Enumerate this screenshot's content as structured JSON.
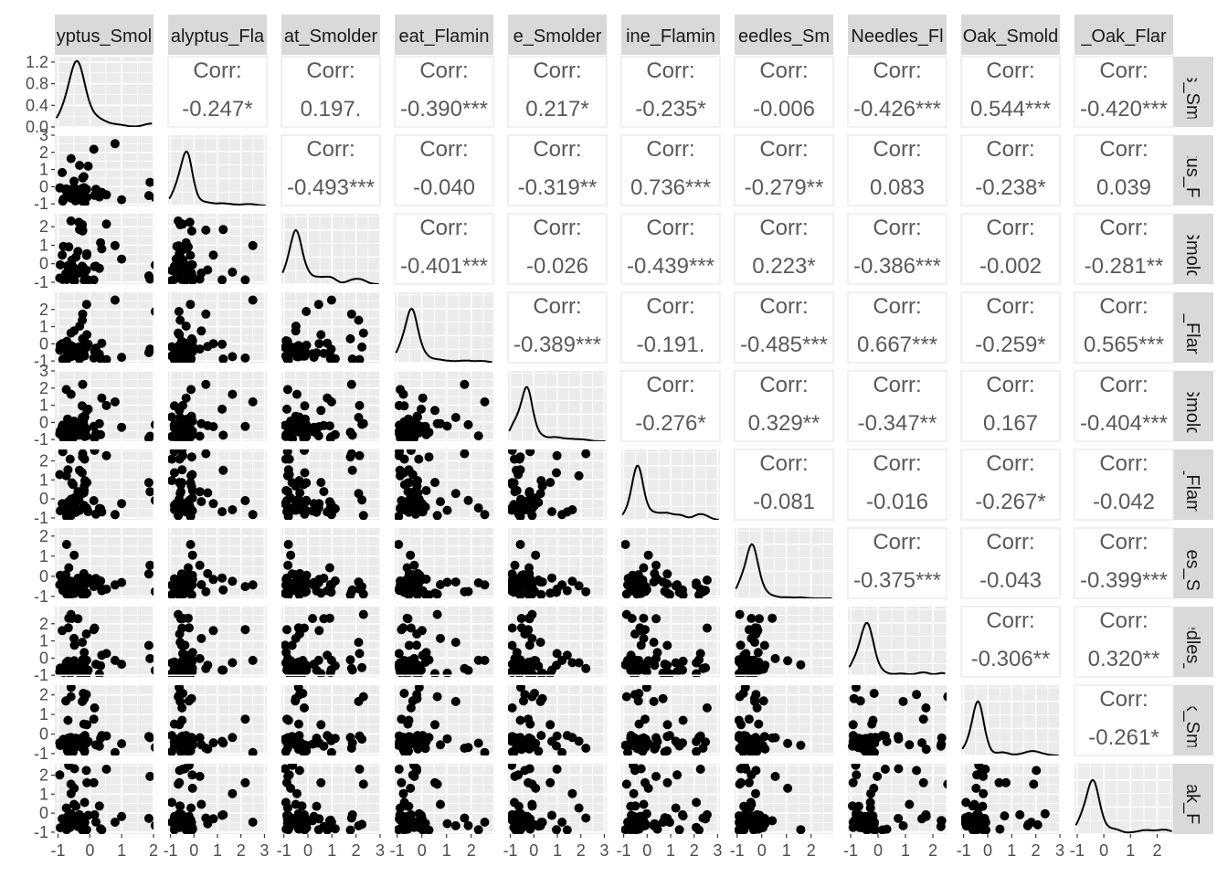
{
  "chart_data": {
    "type": "scatter",
    "title": "",
    "variables": [
      "Eucalyptus_Smoldering",
      "Eucalyptus_Flaming",
      "Peat_Smoldering",
      "Peat_Flaming",
      "Pine_Smoldering",
      "Pine_Flaming",
      "Pine_Needles_Smoldering",
      "Pine_Needles_Flaming",
      "Red_Oak_Smoldering",
      "Red_Oak_Flaming"
    ],
    "strip_labels_top": [
      "yptus_Smol",
      "alyptus_Fla",
      "at_Smolder",
      "eat_Flamin",
      "e_Smolder",
      "ine_Flamin",
      "eedles_Sm",
      "Needles_Fl",
      "Oak_Smold",
      "_Oak_Flar"
    ],
    "strip_labels_right": [
      "us_Sm",
      "ptus_F",
      "_Smold",
      "at_Flan",
      "_Smold",
      "e_Flam",
      "dles_S",
      "eedles_",
      "ak_Sm",
      "Oak_Fl"
    ],
    "corr_label": "Corr:",
    "correlations": [
      [
        null,
        "-0.247*",
        "0.197.",
        "-0.390***",
        "0.217*",
        "-0.235*",
        "-0.006",
        "-0.426***",
        "0.544***",
        "-0.420***"
      ],
      [
        null,
        null,
        "-0.493***",
        "-0.040",
        "-0.319**",
        "0.736***",
        "-0.279**",
        "0.083",
        "-0.238*",
        "0.039"
      ],
      [
        null,
        null,
        null,
        "-0.401***",
        "-0.026",
        "-0.439***",
        "0.223*",
        "-0.386***",
        "-0.002",
        "-0.281**"
      ],
      [
        null,
        null,
        null,
        null,
        "-0.389***",
        "-0.191.",
        "-0.485***",
        "0.667***",
        "-0.259*",
        "0.565***"
      ],
      [
        null,
        null,
        null,
        null,
        null,
        "-0.276*",
        "0.329**",
        "-0.347**",
        "0.167",
        "-0.404***"
      ],
      [
        null,
        null,
        null,
        null,
        null,
        null,
        "-0.081",
        "-0.016",
        "-0.267*",
        "-0.042"
      ],
      [
        null,
        null,
        null,
        null,
        null,
        null,
        null,
        "-0.375***",
        "-0.043",
        "-0.399***"
      ],
      [
        null,
        null,
        null,
        null,
        null,
        null,
        null,
        null,
        "-0.306**",
        "0.320**"
      ],
      [
        null,
        null,
        null,
        null,
        null,
        null,
        null,
        null,
        null,
        "-0.261*"
      ],
      [
        null,
        null,
        null,
        null,
        null,
        null,
        null,
        null,
        null,
        null
      ]
    ],
    "xlim": [
      [
        -1.1,
        2.0
      ],
      [
        -1.1,
        3.1
      ],
      [
        -1.1,
        3.0
      ],
      [
        -1.1,
        2.9
      ],
      [
        -1.1,
        3.1
      ],
      [
        -1.1,
        3.1
      ],
      [
        -1.1,
        2.9
      ],
      [
        -1.1,
        2.5
      ],
      [
        -1.1,
        3.0
      ],
      [
        -1.1,
        2.6
      ]
    ],
    "ylim": [
      [
        -1.1,
        3.0
      ],
      [
        -1.1,
        3.0
      ],
      [
        -1.1,
        2.7
      ],
      [
        -1.1,
        3.0
      ],
      [
        -1.1,
        3.0
      ],
      [
        -1.1,
        2.6
      ],
      [
        -1.1,
        2.4
      ],
      [
        -1.1,
        3.0
      ],
      [
        -1.1,
        2.5
      ],
      [
        -1.1,
        2.6
      ]
    ],
    "x_ticks": [
      [
        "-1",
        "0",
        "1",
        "2"
      ],
      [
        "-1",
        "0",
        "1",
        "2",
        "3"
      ],
      [
        "-1",
        "0",
        "1",
        "2",
        "3"
      ],
      [
        "-1",
        "0",
        "1",
        "2"
      ],
      [
        "-1",
        "0",
        "1",
        "2",
        "3"
      ],
      [
        "-1",
        "0",
        "1",
        "2",
        "3"
      ],
      [
        "-1",
        "0",
        "1",
        "2"
      ],
      [
        "-1",
        "0",
        "1",
        "2"
      ],
      [
        "-1",
        "0",
        "1",
        "2",
        "3"
      ],
      [
        "-1",
        "0",
        "1",
        "2"
      ]
    ],
    "y_ticks": [
      [
        "0.0",
        "0.4",
        "0.8",
        "1.2"
      ],
      [
        "-1",
        "0",
        "1",
        "2",
        "3"
      ],
      [
        "-1",
        "0",
        "1",
        "2",
        "3"
      ],
      [
        "-1",
        "0",
        "1",
        "2"
      ],
      [
        "-1",
        "0",
        "1",
        "2",
        "3"
      ],
      [
        "-1",
        "0",
        "1",
        "2",
        "3"
      ],
      [
        "-1",
        "0",
        "1",
        "2"
      ],
      [
        "-1",
        "0",
        "1",
        "2"
      ],
      [
        "-1",
        "0",
        "1",
        "2",
        "3"
      ],
      [
        "-1",
        "0",
        "1",
        "2"
      ]
    ],
    "density_ylim_first": [
      0,
      1.3
    ],
    "density_peaks": [
      {
        "mode": -0.4,
        "height": 1.22
      },
      {
        "mode": -0.3,
        "height": 1.0
      },
      {
        "mode": -0.5,
        "height": 1.0
      },
      {
        "mode": -0.4,
        "height": 1.0
      },
      {
        "mode": -0.3,
        "height": 1.0
      },
      {
        "mode": -0.4,
        "height": 1.0
      },
      {
        "mode": -0.4,
        "height": 1.0
      },
      {
        "mode": -0.4,
        "height": 1.0
      },
      {
        "mode": -0.4,
        "height": 1.0
      },
      {
        "mode": -0.4,
        "height": 1.0
      }
    ],
    "grid": true,
    "legend": "none",
    "colors": {
      "panel_bg": "#ebebeb",
      "grid": "#ffffff",
      "strip_bg": "#d9d9d9",
      "points": "#000000",
      "corr_text": "#595959"
    }
  }
}
